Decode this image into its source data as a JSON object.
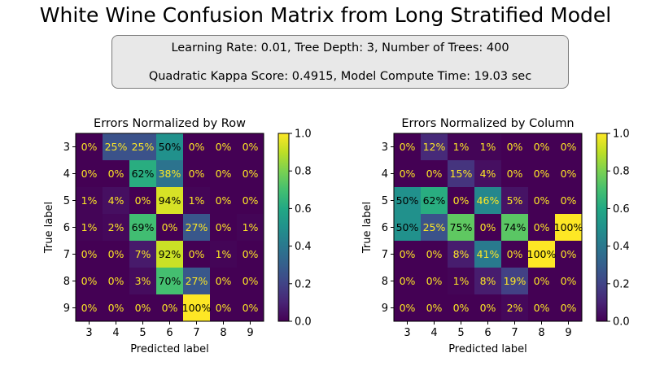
{
  "title": "White Wine Confusion Matrix from Long Stratified Model",
  "info": {
    "line1": "Learning Rate: 0.01, Tree Depth: 3, Number of Trees: 400",
    "line2": "Quadratic Kappa Score: 0.4915,  Model Compute Time: 19.03 sec"
  },
  "chart_data": [
    {
      "type": "heatmap",
      "title": "Errors Normalized by Row",
      "xlabel": "Predicted label",
      "ylabel": "True label",
      "x_categories": [
        "3",
        "4",
        "5",
        "6",
        "7",
        "8",
        "9"
      ],
      "y_categories": [
        "3",
        "4",
        "5",
        "6",
        "7",
        "8",
        "9"
      ],
      "values": [
        [
          0.0,
          0.25,
          0.25,
          0.5,
          0.0,
          0.0,
          0.0
        ],
        [
          0.0,
          0.0,
          0.62,
          0.38,
          0.0,
          0.0,
          0.0
        ],
        [
          0.01,
          0.04,
          0.0,
          0.94,
          0.01,
          0.0,
          0.0
        ],
        [
          0.01,
          0.02,
          0.69,
          0.0,
          0.27,
          0.0,
          0.01
        ],
        [
          0.0,
          0.0,
          0.07,
          0.92,
          0.0,
          0.01,
          0.0
        ],
        [
          0.0,
          0.0,
          0.03,
          0.7,
          0.27,
          0.0,
          0.0
        ],
        [
          0.0,
          0.0,
          0.0,
          0.0,
          1.0,
          0.0,
          0.0
        ]
      ],
      "cell_labels": [
        [
          "0%",
          "25%",
          "25%",
          "50%",
          "0%",
          "0%",
          "0%"
        ],
        [
          "0%",
          "0%",
          "62%",
          "38%",
          "0%",
          "0%",
          "0%"
        ],
        [
          "1%",
          "4%",
          "0%",
          "94%",
          "1%",
          "0%",
          "0%"
        ],
        [
          "1%",
          "2%",
          "69%",
          "0%",
          "27%",
          "0%",
          "1%"
        ],
        [
          "0%",
          "0%",
          "7%",
          "92%",
          "0%",
          "1%",
          "0%"
        ],
        [
          "0%",
          "0%",
          "3%",
          "70%",
          "27%",
          "0%",
          "0%"
        ],
        [
          "0%",
          "0%",
          "0%",
          "0%",
          "100%",
          "0%",
          "0%"
        ]
      ],
      "colormap": "viridis",
      "colorbar": {
        "range": [
          0.0,
          1.0
        ],
        "ticks": [
          "0.0",
          "0.2",
          "0.4",
          "0.6",
          "0.8",
          "1.0"
        ]
      }
    },
    {
      "type": "heatmap",
      "title": "Errors Normalized by Column",
      "xlabel": "Predicted label",
      "ylabel": "True label",
      "x_categories": [
        "3",
        "4",
        "5",
        "6",
        "7",
        "8",
        "9"
      ],
      "y_categories": [
        "3",
        "4",
        "5",
        "6",
        "7",
        "8",
        "9"
      ],
      "values": [
        [
          0.0,
          0.12,
          0.01,
          0.01,
          0.0,
          0.0,
          0.0
        ],
        [
          0.0,
          0.0,
          0.15,
          0.04,
          0.0,
          0.0,
          0.0
        ],
        [
          0.5,
          0.62,
          0.0,
          0.46,
          0.05,
          0.0,
          0.0
        ],
        [
          0.5,
          0.25,
          0.75,
          0.0,
          0.74,
          0.0,
          1.0
        ],
        [
          0.0,
          0.0,
          0.08,
          0.41,
          0.0,
          1.0,
          0.0
        ],
        [
          0.0,
          0.0,
          0.01,
          0.08,
          0.19,
          0.0,
          0.0
        ],
        [
          0.0,
          0.0,
          0.0,
          0.0,
          0.02,
          0.0,
          0.0
        ]
      ],
      "cell_labels": [
        [
          "0%",
          "12%",
          "1%",
          "1%",
          "0%",
          "0%",
          "0%"
        ],
        [
          "0%",
          "0%",
          "15%",
          "4%",
          "0%",
          "0%",
          "0%"
        ],
        [
          "50%",
          "62%",
          "0%",
          "46%",
          "5%",
          "0%",
          "0%"
        ],
        [
          "50%",
          "25%",
          "75%",
          "0%",
          "74%",
          "0%",
          "100%"
        ],
        [
          "0%",
          "0%",
          "8%",
          "41%",
          "0%",
          "100%",
          "0%"
        ],
        [
          "0%",
          "0%",
          "1%",
          "8%",
          "19%",
          "0%",
          "0%"
        ],
        [
          "0%",
          "0%",
          "0%",
          "0%",
          "2%",
          "0%",
          "0%"
        ]
      ],
      "colormap": "viridis",
      "colorbar": {
        "range": [
          0.0,
          1.0
        ],
        "ticks": [
          "0.0",
          "0.2",
          "0.4",
          "0.6",
          "0.8",
          "1.0"
        ]
      }
    }
  ]
}
